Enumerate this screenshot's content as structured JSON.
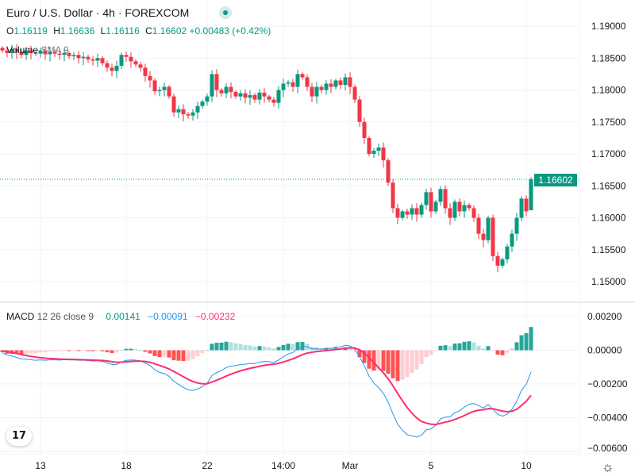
{
  "header": {
    "title": "Euro / U.S. Dollar · 4h · FOREXCOM",
    "ohlc": {
      "o_label": "O",
      "o": "1.16119",
      "h_label": "H",
      "h": "1.16636",
      "l_label": "L",
      "l": "1.16116",
      "c_label": "C",
      "c": "1.16602",
      "change": "+0.00483 (+0.42%)"
    },
    "volume_label": "Volume",
    "volume_sma": "SMA 9"
  },
  "macd_legend": {
    "label": "MACD",
    "params": "12 26 close 9",
    "hist": "0.00141",
    "macd": "−0.00091",
    "signal": "−0.00232"
  },
  "last_price": "1.16602",
  "colors": {
    "up": "#089981",
    "down": "#f23645",
    "macd": "#2196f3",
    "signal": "#ff2e6e",
    "hist_up": "#26a69a",
    "hist_up_light": "#b2dfdb",
    "hist_down": "#ff5252",
    "hist_down_light": "#ffcdd2"
  },
  "chart_data": {
    "type": "candlestick",
    "price_ticks": [
      "1.19000",
      "1.18500",
      "1.18000",
      "1.17500",
      "1.17000",
      "1.16500",
      "1.16000",
      "1.15500",
      "1.15000"
    ],
    "price_range": [
      1.1481,
      1.1909
    ],
    "macd_ticks": [
      "0.00200",
      "0.00000",
      "−0.00200",
      "−0.00400",
      "−0.00600"
    ],
    "macd_range": [
      -0.006,
      0.0026
    ],
    "x_labels": [
      {
        "label": "13",
        "i": 8
      },
      {
        "label": "18",
        "i": 26
      },
      {
        "label": "22",
        "i": 43
      },
      {
        "label": "14:00",
        "i": 59
      },
      {
        "label": "Mar",
        "i": 73
      },
      {
        "label": "5",
        "i": 90
      },
      {
        "label": "10",
        "i": 110
      }
    ],
    "last_open": 1.16119,
    "last_high": 1.16636,
    "last_low": 1.16116,
    "closes": [
      1.1862,
      1.1858,
      1.1864,
      1.186,
      1.1855,
      1.1862,
      1.1858,
      1.1857,
      1.1862,
      1.1856,
      1.186,
      1.1857,
      1.1855,
      1.1858,
      1.1853,
      1.1855,
      1.185,
      1.1852,
      1.1848,
      1.1846,
      1.185,
      1.1842,
      1.1835,
      1.183,
      1.1838,
      1.1855,
      1.1852,
      1.1845,
      1.184,
      1.1835,
      1.1822,
      1.1815,
      1.1798,
      1.18,
      1.1805,
      1.179,
      1.1765,
      1.177,
      1.1762,
      1.176,
      1.1765,
      1.1775,
      1.1782,
      1.179,
      1.1825,
      1.18,
      1.1795,
      1.1805,
      1.1797,
      1.179,
      1.1795,
      1.1788,
      1.1792,
      1.1785,
      1.1796,
      1.179,
      1.1785,
      1.178,
      1.18,
      1.181,
      1.1812,
      1.1805,
      1.1825,
      1.182,
      1.1805,
      1.179,
      1.1805,
      1.18,
      1.181,
      1.1805,
      1.1815,
      1.1808,
      1.182,
      1.1805,
      1.1785,
      1.175,
      1.1725,
      1.17,
      1.1705,
      1.171,
      1.169,
      1.1655,
      1.1615,
      1.16,
      1.161,
      1.1605,
      1.1615,
      1.1605,
      1.162,
      1.164,
      1.161,
      1.1625,
      1.1645,
      1.1615,
      1.16,
      1.1625,
      1.161,
      1.162,
      1.1615,
      1.16,
      1.1575,
      1.1565,
      1.16,
      1.154,
      1.1525,
      1.1535,
      1.1555,
      1.1575,
      1.16,
      1.163,
      1.161,
      1.16602
    ]
  }
}
